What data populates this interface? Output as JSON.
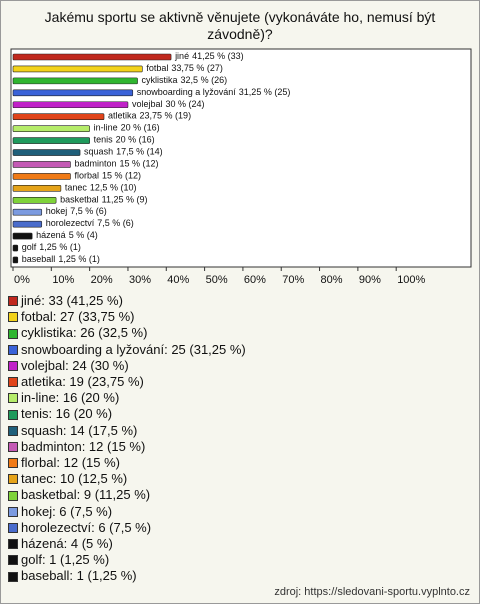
{
  "chart_data": {
    "type": "bar",
    "orientation": "horizontal",
    "title": "Jakému sportu se aktivně věnujete (vykonáváte ho, nemusí být závodně)?",
    "categories": [
      "jiné",
      "fotbal",
      "cyklistika",
      "snowboarding a lyžování",
      "volejbal",
      "atletika",
      "in-line",
      "tenis",
      "squash",
      "badminton",
      "florbal",
      "tanec",
      "basketbal",
      "hokej",
      "horolezectví",
      "házená",
      "golf",
      "baseball"
    ],
    "values": [
      41.25,
      33.75,
      32.5,
      31.25,
      30,
      23.75,
      20,
      20,
      17.5,
      15,
      15,
      12.5,
      11.25,
      7.5,
      7.5,
      5,
      1.25,
      1.25
    ],
    "value_labels": [
      "41,25 % (33)",
      "33,75 % (27)",
      "32,5 % (26)",
      "31,25 % (25)",
      "30 % (24)",
      "23,75 % (19)",
      "20 % (16)",
      "20 % (16)",
      "17,5 % (14)",
      "15 % (12)",
      "15 % (12)",
      "12,5 % (10)",
      "11,25 % (9)",
      "7,5 % (6)",
      "7,5 % (6)",
      "5 % (4)",
      "1,25 % (1)",
      "1,25 % (1)"
    ],
    "legend_labels": [
      "jiné: 33 (41,25 %)",
      "fotbal: 27 (33,75 %)",
      "cyklistika: 26 (32,5 %)",
      "snowboarding a lyžování: 25 (31,25 %)",
      "volejbal: 24 (30 %)",
      "atletika: 19 (23,75 %)",
      "in-line: 16 (20 %)",
      "tenis: 16 (20 %)",
      "squash: 14 (17,5 %)",
      "badminton: 12 (15 %)",
      "florbal: 12 (15 %)",
      "tanec: 10 (12,5 %)",
      "basketbal: 9 (11,25 %)",
      "hokej: 6 (7,5 %)",
      "horolezectví: 6 (7,5 %)",
      "házená: 4 (5 %)",
      "golf: 1 (1,25 %)",
      "baseball: 1 (1,25 %)"
    ],
    "colors": [
      "#c0281e",
      "#f2d21b",
      "#2fb52f",
      "#3a62d8",
      "#c021c8",
      "#e0441a",
      "#b5ec6a",
      "#1f9a5c",
      "#1f5f7a",
      "#c45ab5",
      "#f07a16",
      "#e5a319",
      "#7fd33a",
      "#7c9be0",
      "#4a6ccc",
      "#111111",
      "#111111",
      "#111111"
    ],
    "xlim": [
      0,
      119
    ],
    "xticks": [
      {
        "value": 0,
        "label": "0%"
      },
      {
        "value": 10,
        "label": "10%"
      },
      {
        "value": 20,
        "label": "20%"
      },
      {
        "value": 30,
        "label": "30%"
      },
      {
        "value": 40,
        "label": "40%"
      },
      {
        "value": 50,
        "label": "50%"
      },
      {
        "value": 60,
        "label": "60%"
      },
      {
        "value": 70,
        "label": "70%"
      },
      {
        "value": 80,
        "label": "80%"
      },
      {
        "value": 90,
        "label": "90%"
      },
      {
        "value": 100,
        "label": "100%"
      }
    ],
    "source": "zdroj: https://sledovani-sportu.vyplnto.cz"
  }
}
